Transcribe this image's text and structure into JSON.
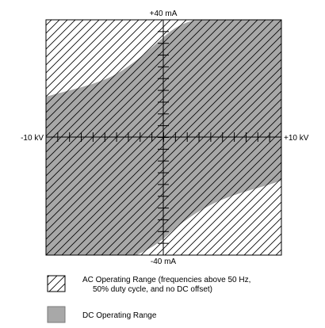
{
  "axis": {
    "y_max_label": "+40 mA",
    "y_min_label": "-40 mA",
    "x_min_label": "-10 kV",
    "x_max_label": "+10 kV"
  },
  "legend": {
    "ac_line1": "AC Operating Range (frequencies above 50 Hz,",
    "ac_line2": "50% duty cycle, and no DC offset)",
    "dc_label": "DC Operating Range"
  },
  "colors": {
    "dc_fill": "#a8a8a8",
    "hatch": "#000000",
    "background": "#ffffff"
  }
}
